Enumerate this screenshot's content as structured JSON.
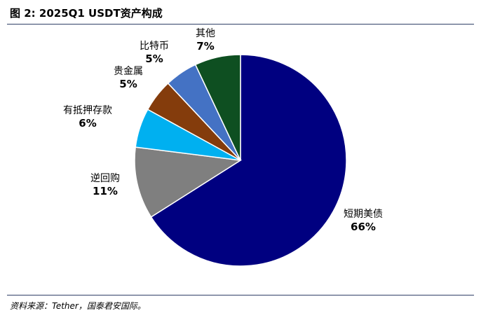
{
  "header": {
    "title": "图 2:  2025Q1 USDT资产构成"
  },
  "footer": {
    "source": "资料来源：Tether，国泰君安国际。"
  },
  "chart_data": {
    "type": "pie",
    "slices": [
      {
        "label": "短期美债",
        "value": 66,
        "value_label": "66%",
        "color": "#000080"
      },
      {
        "label": "逆回购",
        "value": 11,
        "value_label": "11%",
        "color": "#7f7f7f"
      },
      {
        "label": "有抵押存款",
        "value": 6,
        "value_label": "6%",
        "color": "#00b0f0"
      },
      {
        "label": "贵金属",
        "value": 5,
        "value_label": "5%",
        "color": "#843c0c"
      },
      {
        "label": "比特币",
        "value": 5,
        "value_label": "5%",
        "color": "#4472c4"
      },
      {
        "label": "其他",
        "value": 7,
        "value_label": "7%",
        "color": "#0e4f21"
      }
    ],
    "start_angle": "top",
    "direction": "clockwise",
    "legend": "none"
  }
}
